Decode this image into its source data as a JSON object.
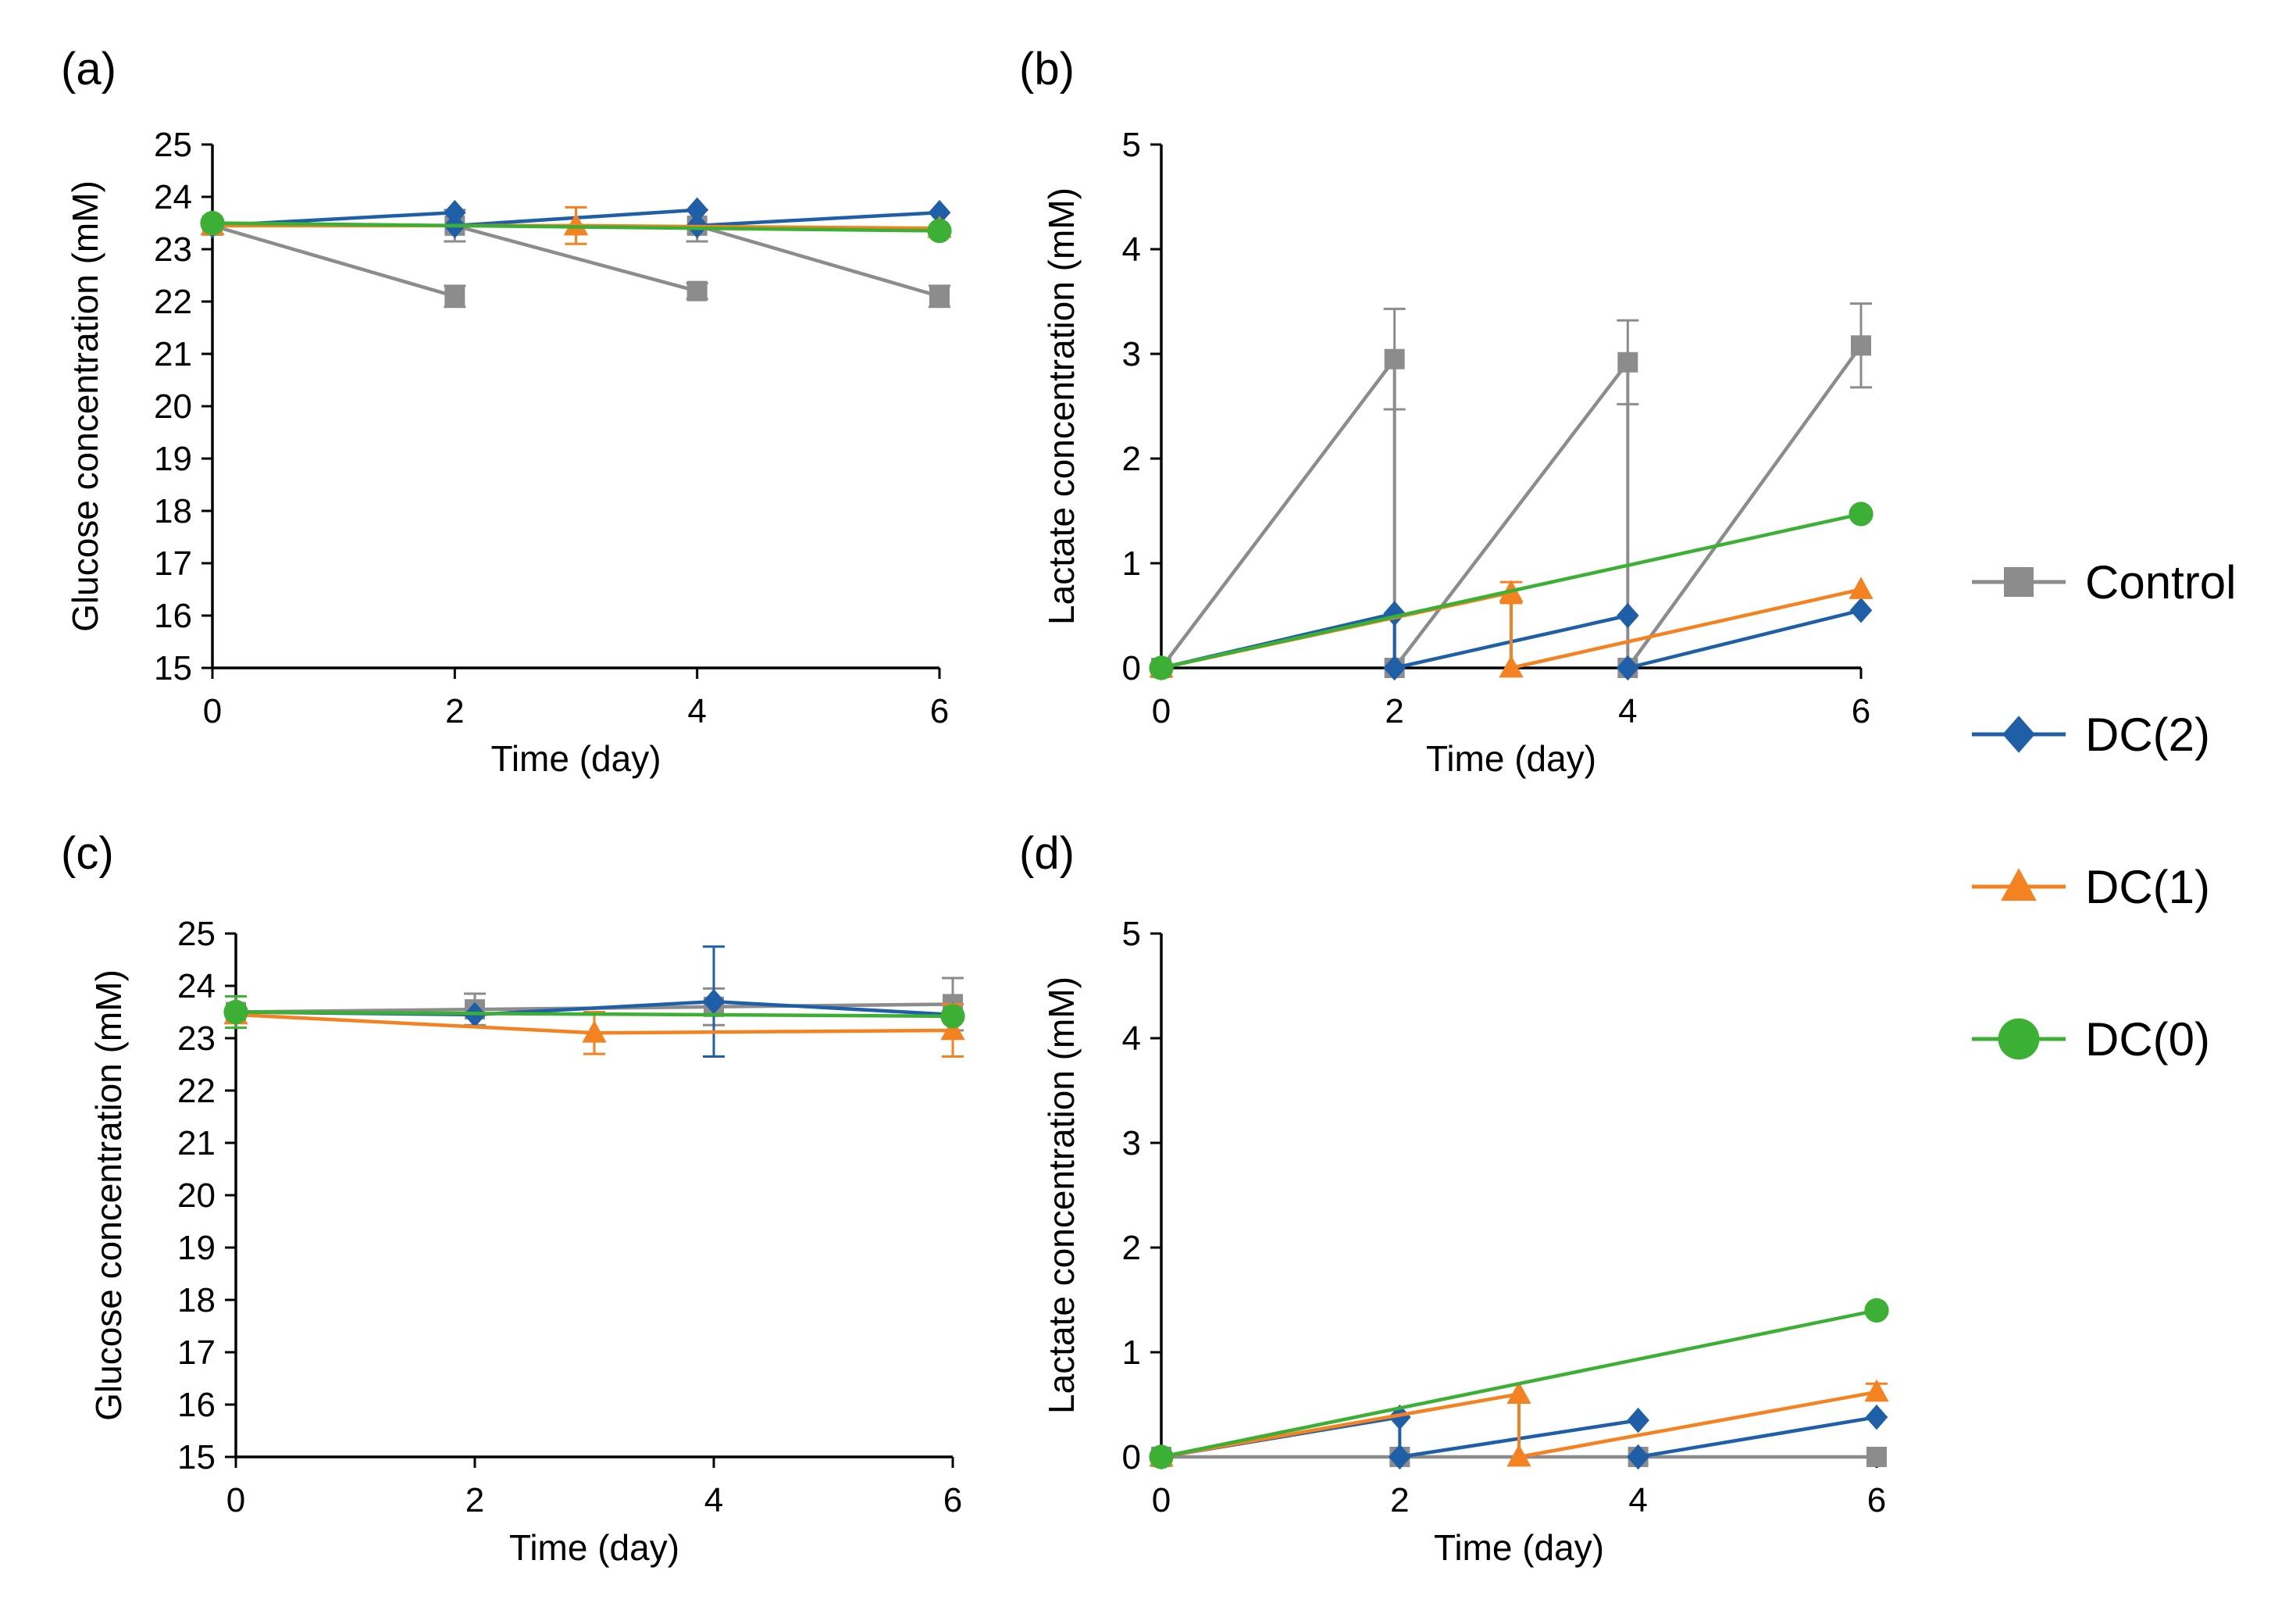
{
  "legend": [
    {
      "name": "Control",
      "color": "#8c8c8c",
      "marker": "square"
    },
    {
      "name": "DC(2)",
      "color": "#1f5fa8",
      "marker": "diamond"
    },
    {
      "name": "DC(1)",
      "color": "#f58220",
      "marker": "triangle"
    },
    {
      "name": "DC(0)",
      "color": "#3cb034",
      "marker": "circle"
    }
  ],
  "chart_data": [
    {
      "panel": "(a)",
      "type": "line",
      "xlabel": "Time (day)",
      "ylabel": "Glucose concentration (mM)",
      "xlim": [
        0,
        6
      ],
      "ylim": [
        15,
        25
      ],
      "xticks": [
        "0",
        "2",
        "4",
        "6"
      ],
      "yticks": [
        "15",
        "16",
        "17",
        "18",
        "19",
        "20",
        "21",
        "22",
        "23",
        "24",
        "25"
      ],
      "grid": false,
      "series": [
        {
          "name": "Control",
          "color": "#8c8c8c",
          "marker": "square",
          "segments": [
            [
              [
                0,
                23.45
              ],
              [
                2,
                22.1
              ]
            ],
            [
              [
                2,
                23.45
              ],
              [
                4,
                22.2
              ]
            ],
            [
              [
                4,
                23.45
              ],
              [
                6,
                22.1
              ]
            ]
          ],
          "errors": [
            [
              2,
              22.1,
              0.2
            ],
            [
              4,
              22.2,
              0.15
            ],
            [
              6,
              22.1,
              0.2
            ],
            [
              2,
              23.45,
              0.3
            ],
            [
              4,
              23.45,
              0.3
            ]
          ]
        },
        {
          "name": "DC(2)",
          "color": "#1f5fa8",
          "marker": "diamond",
          "segments": [
            [
              [
                0,
                23.45
              ],
              [
                2,
                23.7
              ]
            ],
            [
              [
                2,
                23.45
              ],
              [
                4,
                23.75
              ]
            ],
            [
              [
                4,
                23.45
              ],
              [
                6,
                23.7
              ]
            ]
          ],
          "errors": []
        },
        {
          "name": "DC(1)",
          "color": "#f58220",
          "marker": "triangle",
          "segments": [
            [
              [
                0,
                23.45
              ],
              [
                3,
                23.45
              ]
            ],
            [
              [
                3,
                23.45
              ],
              [
                6,
                23.4
              ]
            ]
          ],
          "errors": [
            [
              3,
              23.45,
              0.35
            ]
          ]
        },
        {
          "name": "DC(0)",
          "color": "#3cb034",
          "marker": "circle",
          "segments": [
            [
              [
                0,
                23.5
              ],
              [
                6,
                23.35
              ]
            ]
          ],
          "errors": []
        }
      ]
    },
    {
      "panel": "(b)",
      "type": "line",
      "xlabel": "Time (day)",
      "ylabel": "Lactate concentration (mM)",
      "xlim": [
        0,
        6
      ],
      "ylim": [
        0,
        5
      ],
      "xticks": [
        "0",
        "2",
        "4",
        "6"
      ],
      "yticks": [
        "0",
        "1",
        "2",
        "3",
        "4",
        "5"
      ],
      "grid": false,
      "series": [
        {
          "name": "Control",
          "color": "#8c8c8c",
          "marker": "square",
          "segments": [
            [
              [
                0,
                0
              ],
              [
                2,
                2.95
              ]
            ],
            [
              [
                2,
                0
              ],
              [
                4,
                2.92
              ]
            ],
            [
              [
                4,
                0
              ],
              [
                6,
                3.08
              ]
            ]
          ],
          "errors": [
            [
              2,
              2.95,
              0.48
            ],
            [
              4,
              2.92,
              0.4
            ],
            [
              6,
              3.08,
              0.4
            ]
          ],
          "vlines": [
            [
              2,
              0,
              2.95
            ],
            [
              4,
              0,
              2.92
            ]
          ]
        },
        {
          "name": "DC(2)",
          "color": "#1f5fa8",
          "marker": "diamond",
          "segments": [
            [
              [
                0,
                0
              ],
              [
                2,
                0.52
              ]
            ],
            [
              [
                2,
                0
              ],
              [
                4,
                0.5
              ]
            ],
            [
              [
                4,
                0
              ],
              [
                6,
                0.55
              ]
            ]
          ],
          "errors": [],
          "vlines": [
            [
              2,
              0,
              0.52
            ]
          ]
        },
        {
          "name": "DC(1)",
          "color": "#f58220",
          "marker": "triangle",
          "segments": [
            [
              [
                0,
                0
              ],
              [
                3,
                0.72
              ]
            ],
            [
              [
                3,
                0
              ],
              [
                6,
                0.75
              ]
            ]
          ],
          "errors": [
            [
              3,
              0.72,
              0.1
            ]
          ],
          "vlines": [
            [
              3,
              0,
              0.72
            ]
          ]
        },
        {
          "name": "DC(0)",
          "color": "#3cb034",
          "marker": "circle",
          "segments": [
            [
              [
                0,
                0
              ],
              [
                6,
                1.47
              ]
            ]
          ],
          "errors": []
        }
      ]
    },
    {
      "panel": "(c)",
      "type": "line",
      "xlabel": "Time (day)",
      "ylabel": "Glucose concentration (mM)",
      "xlim": [
        0,
        6
      ],
      "ylim": [
        15,
        25
      ],
      "xticks": [
        "0",
        "2",
        "4",
        "6"
      ],
      "yticks": [
        "15",
        "16",
        "17",
        "18",
        "19",
        "20",
        "21",
        "22",
        "23",
        "24",
        "25"
      ],
      "grid": false,
      "series": [
        {
          "name": "Control",
          "color": "#8c8c8c",
          "marker": "square",
          "segments": [
            [
              [
                0,
                23.5
              ],
              [
                2,
                23.55
              ],
              [
                4,
                23.6
              ],
              [
                6,
                23.65
              ]
            ]
          ],
          "errors": [
            [
              2,
              23.55,
              0.3
            ],
            [
              4,
              23.6,
              0.35
            ],
            [
              6,
              23.65,
              0.5
            ]
          ]
        },
        {
          "name": "DC(2)",
          "color": "#1f5fa8",
          "marker": "diamond",
          "segments": [
            [
              [
                0,
                23.5
              ],
              [
                2,
                23.45
              ],
              [
                4,
                23.7
              ],
              [
                6,
                23.45
              ]
            ]
          ],
          "errors": [
            [
              4,
              23.7,
              1.05
            ]
          ]
        },
        {
          "name": "DC(1)",
          "color": "#f58220",
          "marker": "triangle",
          "segments": [
            [
              [
                0,
                23.45
              ],
              [
                3,
                23.1
              ],
              [
                6,
                23.15
              ]
            ]
          ],
          "errors": [
            [
              3,
              23.1,
              0.4
            ],
            [
              6,
              23.15,
              0.5
            ]
          ]
        },
        {
          "name": "DC(0)",
          "color": "#3cb034",
          "marker": "circle",
          "segments": [
            [
              [
                0,
                23.5
              ],
              [
                6,
                23.42
              ]
            ]
          ],
          "errors": [
            [
              0,
              23.5,
              0.3
            ]
          ]
        }
      ]
    },
    {
      "panel": "(d)",
      "type": "line",
      "xlabel": "Time (day)",
      "ylabel": "Lactate concentration (mM)",
      "xlim": [
        0,
        6
      ],
      "ylim": [
        0,
        5
      ],
      "xticks": [
        "0",
        "2",
        "4",
        "6"
      ],
      "yticks": [
        "0",
        "1",
        "2",
        "3",
        "4",
        "5"
      ],
      "grid": false,
      "series": [
        {
          "name": "Control",
          "color": "#8c8c8c",
          "marker": "square",
          "segments": [
            [
              [
                0,
                0
              ],
              [
                2,
                0
              ],
              [
                4,
                0
              ],
              [
                6,
                0
              ]
            ]
          ],
          "errors": []
        },
        {
          "name": "DC(2)",
          "color": "#1f5fa8",
          "marker": "diamond",
          "segments": [
            [
              [
                0,
                0
              ],
              [
                2,
                0.38
              ]
            ],
            [
              [
                2,
                0
              ],
              [
                4,
                0.35
              ]
            ],
            [
              [
                4,
                0
              ],
              [
                6,
                0.38
              ]
            ]
          ],
          "errors": [],
          "vlines": [
            [
              2,
              0,
              0.38
            ]
          ]
        },
        {
          "name": "DC(1)",
          "color": "#f58220",
          "marker": "triangle",
          "segments": [
            [
              [
                0,
                0
              ],
              [
                3,
                0.6
              ]
            ],
            [
              [
                3,
                0
              ],
              [
                6,
                0.62
              ]
            ]
          ],
          "errors": [
            [
              6,
              0.62,
              0.08
            ]
          ],
          "vlines": [
            [
              3,
              0,
              0.6
            ]
          ]
        },
        {
          "name": "DC(0)",
          "color": "#3cb034",
          "marker": "circle",
          "segments": [
            [
              [
                0,
                0
              ],
              [
                6,
                1.4
              ]
            ]
          ],
          "errors": []
        }
      ]
    }
  ]
}
